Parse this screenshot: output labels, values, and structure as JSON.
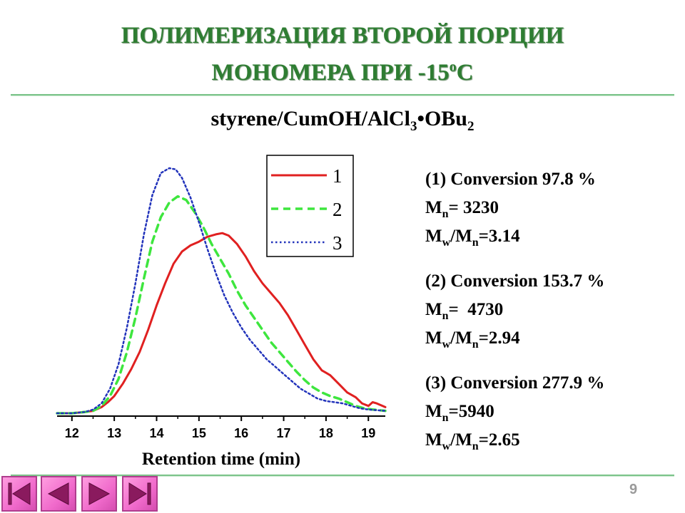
{
  "slide": {
    "title_line1": "ПОЛИМЕРИЗАЦИЯ ВТОРОЙ ПОРЦИИ",
    "title_line2_main": "МОНОМЕРА ПРИ -15",
    "title_line2_sup": "o",
    "title_line2_end": "C",
    "page_number": "9"
  },
  "formula": {
    "part1": "styrene/CumOH/AlCl",
    "sub1": "3",
    "part2": "•OBu",
    "sub2": "2"
  },
  "info": [
    {
      "conversion": "(1) Conversion 97.8 %",
      "mn_label": "M",
      "mn_sub": "n",
      "mn_value": "= 3230",
      "mw_label": "M",
      "mw_sub": "w",
      "mw_mid": "/M",
      "mw_sub2": "n",
      "mw_value": "=3.14"
    },
    {
      "conversion": "(2) Conversion 153.7 %",
      "mn_label": "M",
      "mn_sub": "n",
      "mn_value": "=  4730",
      "mw_label": "M",
      "mw_sub": "w",
      "mw_mid": "/M",
      "mw_sub2": "n",
      "mw_value": "=2.94"
    },
    {
      "conversion": "(3) Conversion 277.9 %",
      "mn_label": "M",
      "mn_sub": "n",
      "mn_value": "=5940",
      "mw_label": "M",
      "mw_sub": "w",
      "mw_mid": "/M",
      "mw_sub2": "n",
      "mw_value": "=2.65"
    }
  ],
  "nav": {
    "buttons": [
      "first-slide",
      "previous-slide",
      "next-slide",
      "last-slide"
    ],
    "color": "#f06acb"
  },
  "chart_data": {
    "type": "line",
    "xlabel": "Retention time (min)",
    "ylabel": "",
    "xlim": [
      11.65,
      19.4
    ],
    "ylim": [
      0,
      1
    ],
    "xticks": [
      12,
      13,
      14,
      15,
      16,
      17,
      18,
      19
    ],
    "grid": false,
    "legend_position": "top-right",
    "series": [
      {
        "name": "1",
        "color": "#e02020",
        "dash": "solid",
        "x": [
          11.65,
          12.0,
          12.3,
          12.5,
          12.7,
          12.85,
          13.0,
          13.2,
          13.4,
          13.6,
          13.8,
          14.0,
          14.2,
          14.4,
          14.6,
          14.8,
          15.0,
          15.2,
          15.4,
          15.55,
          15.7,
          15.9,
          16.1,
          16.3,
          16.5,
          16.7,
          16.9,
          17.1,
          17.3,
          17.5,
          17.7,
          17.9,
          18.0,
          18.1,
          18.3,
          18.5,
          18.7,
          18.85,
          19.0,
          19.1,
          19.2,
          19.4
        ],
        "y": [
          0.0,
          0.0,
          0.005,
          0.01,
          0.025,
          0.045,
          0.07,
          0.12,
          0.18,
          0.25,
          0.34,
          0.44,
          0.53,
          0.61,
          0.66,
          0.685,
          0.7,
          0.72,
          0.73,
          0.735,
          0.725,
          0.69,
          0.64,
          0.58,
          0.53,
          0.49,
          0.45,
          0.4,
          0.34,
          0.28,
          0.22,
          0.175,
          0.165,
          0.155,
          0.12,
          0.085,
          0.065,
          0.04,
          0.03,
          0.045,
          0.04,
          0.025
        ]
      },
      {
        "name": "2",
        "color": "#3ee63e",
        "dash": "dashed",
        "x": [
          11.65,
          12.0,
          12.3,
          12.5,
          12.7,
          12.9,
          13.1,
          13.3,
          13.5,
          13.7,
          13.9,
          14.1,
          14.3,
          14.5,
          14.7,
          14.9,
          15.1,
          15.3,
          15.5,
          15.7,
          15.9,
          16.1,
          16.3,
          16.5,
          16.7,
          16.9,
          17.1,
          17.3,
          17.5,
          17.7,
          17.9,
          18.1,
          18.3,
          18.5,
          18.7,
          18.9,
          19.1,
          19.4
        ],
        "y": [
          0.0,
          0.0,
          0.005,
          0.01,
          0.03,
          0.07,
          0.14,
          0.25,
          0.39,
          0.55,
          0.7,
          0.8,
          0.86,
          0.885,
          0.87,
          0.82,
          0.76,
          0.69,
          0.63,
          0.57,
          0.5,
          0.44,
          0.39,
          0.34,
          0.29,
          0.25,
          0.21,
          0.17,
          0.135,
          0.105,
          0.085,
          0.07,
          0.06,
          0.045,
          0.03,
          0.02,
          0.015,
          0.01
        ]
      },
      {
        "name": "3",
        "color": "#2233bb",
        "dash": "dotted",
        "x": [
          11.65,
          12.0,
          12.3,
          12.5,
          12.7,
          12.9,
          13.1,
          13.3,
          13.5,
          13.7,
          13.9,
          14.1,
          14.3,
          14.45,
          14.6,
          14.8,
          15.0,
          15.2,
          15.4,
          15.6,
          15.8,
          16.0,
          16.2,
          16.4,
          16.6,
          16.8,
          17.0,
          17.2,
          17.4,
          17.6,
          17.8,
          18.0,
          18.2,
          18.4,
          18.6,
          18.8,
          19.0,
          19.4
        ],
        "y": [
          0.0,
          0.0,
          0.005,
          0.015,
          0.04,
          0.1,
          0.2,
          0.35,
          0.53,
          0.73,
          0.89,
          0.98,
          1.0,
          0.995,
          0.96,
          0.88,
          0.78,
          0.67,
          0.57,
          0.48,
          0.41,
          0.35,
          0.3,
          0.26,
          0.22,
          0.19,
          0.16,
          0.13,
          0.1,
          0.08,
          0.06,
          0.05,
          0.045,
          0.04,
          0.03,
          0.02,
          0.015,
          0.01
        ]
      }
    ]
  }
}
